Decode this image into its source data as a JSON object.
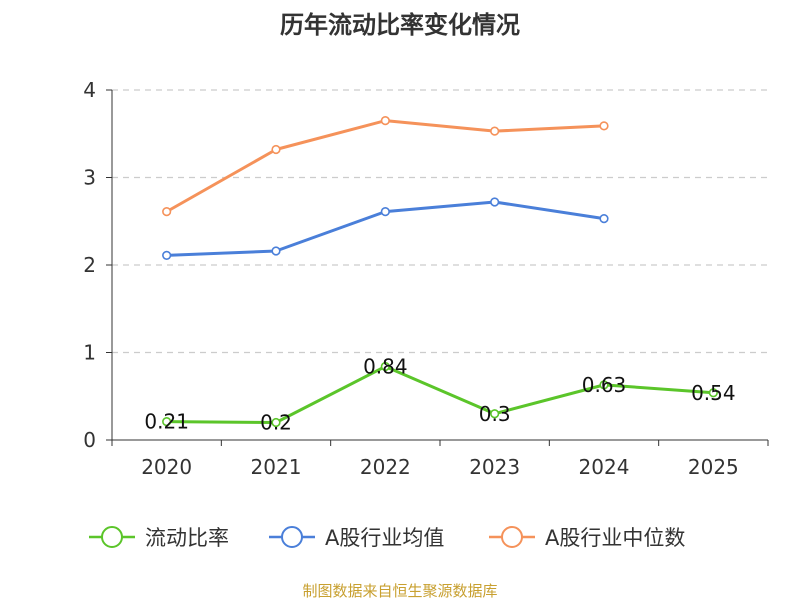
{
  "chart_data": {
    "type": "line",
    "title": "历年流动比率变化情况",
    "categories": [
      "2020",
      "2021",
      "2022",
      "2023",
      "2024",
      "2025"
    ],
    "ylim": [
      0,
      4
    ],
    "yticks": [
      0,
      1,
      2,
      3,
      4
    ],
    "grid": true,
    "legend_position": "bottom",
    "series": [
      {
        "name": "流动比率",
        "color": "#5bc52a",
        "values": [
          0.21,
          0.2,
          0.84,
          0.3,
          0.63,
          0.54
        ],
        "labels": [
          "0.21",
          "0.2",
          "0.84",
          "0.3",
          "0.63",
          "0.54"
        ],
        "show_labels": true
      },
      {
        "name": "A股行业均值",
        "color": "#4a7fd9",
        "values": [
          2.11,
          2.16,
          2.61,
          2.72,
          2.53,
          null
        ],
        "show_labels": false
      },
      {
        "name": "A股行业中位数",
        "color": "#f5925a",
        "values": [
          2.61,
          3.32,
          3.65,
          3.53,
          3.59,
          null
        ],
        "show_labels": false
      }
    ],
    "source": "制图数据来自恒生聚源数据库"
  }
}
